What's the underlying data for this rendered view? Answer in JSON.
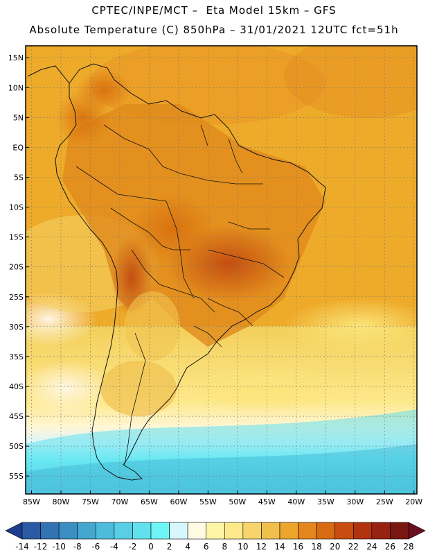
{
  "header": {
    "line1": "CPTEC/INPE/MCT –  Eta Model 15km – GFS",
    "line2": "Absolute Temperature (C) 850hPa – 31/01/2021 12UTC fct=51h"
  },
  "map": {
    "lat_range": [
      -58,
      17
    ],
    "lon_range": [
      -86,
      -19.5
    ],
    "lat_ticks": [
      {
        "value": 15,
        "label": "15N"
      },
      {
        "value": 10,
        "label": "10N"
      },
      {
        "value": 5,
        "label": "5N"
      },
      {
        "value": 0,
        "label": "EQ"
      },
      {
        "value": -5,
        "label": "5S"
      },
      {
        "value": -10,
        "label": "10S"
      },
      {
        "value": -15,
        "label": "15S"
      },
      {
        "value": -20,
        "label": "20S"
      },
      {
        "value": -25,
        "label": "25S"
      },
      {
        "value": -30,
        "label": "30S"
      },
      {
        "value": -35,
        "label": "35S"
      },
      {
        "value": -40,
        "label": "40S"
      },
      {
        "value": -45,
        "label": "45S"
      },
      {
        "value": -50,
        "label": "50S"
      },
      {
        "value": -55,
        "label": "55S"
      }
    ],
    "lon_ticks": [
      {
        "value": -85,
        "label": "85W"
      },
      {
        "value": -80,
        "label": "80W"
      },
      {
        "value": -75,
        "label": "75W"
      },
      {
        "value": -70,
        "label": "70W"
      },
      {
        "value": -65,
        "label": "65W"
      },
      {
        "value": -60,
        "label": "60W"
      },
      {
        "value": -55,
        "label": "55W"
      },
      {
        "value": -50,
        "label": "50W"
      },
      {
        "value": -45,
        "label": "45W"
      },
      {
        "value": -40,
        "label": "40W"
      },
      {
        "value": -35,
        "label": "35W"
      },
      {
        "value": -30,
        "label": "30W"
      },
      {
        "value": -25,
        "label": "25W"
      },
      {
        "value": -20,
        "label": "20W"
      }
    ]
  },
  "colorbar": {
    "labels": [
      "-14",
      "-12",
      "-10",
      "-8",
      "-6",
      "-4",
      "-2",
      "0",
      "2",
      "4",
      "6",
      "8",
      "10",
      "12",
      "14",
      "16",
      "18",
      "20",
      "22",
      "24",
      "26",
      "28"
    ],
    "low_color": "#1f3d8f",
    "high_color": "#6b0e1e",
    "colors": [
      "#1f3d8f",
      "#2a5aa4",
      "#3373b2",
      "#3a8ec2",
      "#43a6cf",
      "#4dbcdc",
      "#58cfe6",
      "#62e0ee",
      "#6ff5f5",
      "#d6f7fb",
      "#fffbe3",
      "#fff5a8",
      "#fde98a",
      "#f7d56c",
      "#f1bf4c",
      "#eda52c",
      "#e5851e",
      "#d96a14",
      "#c94d10",
      "#b1330e",
      "#962312",
      "#7a1712",
      "#6b0e1e"
    ]
  }
}
